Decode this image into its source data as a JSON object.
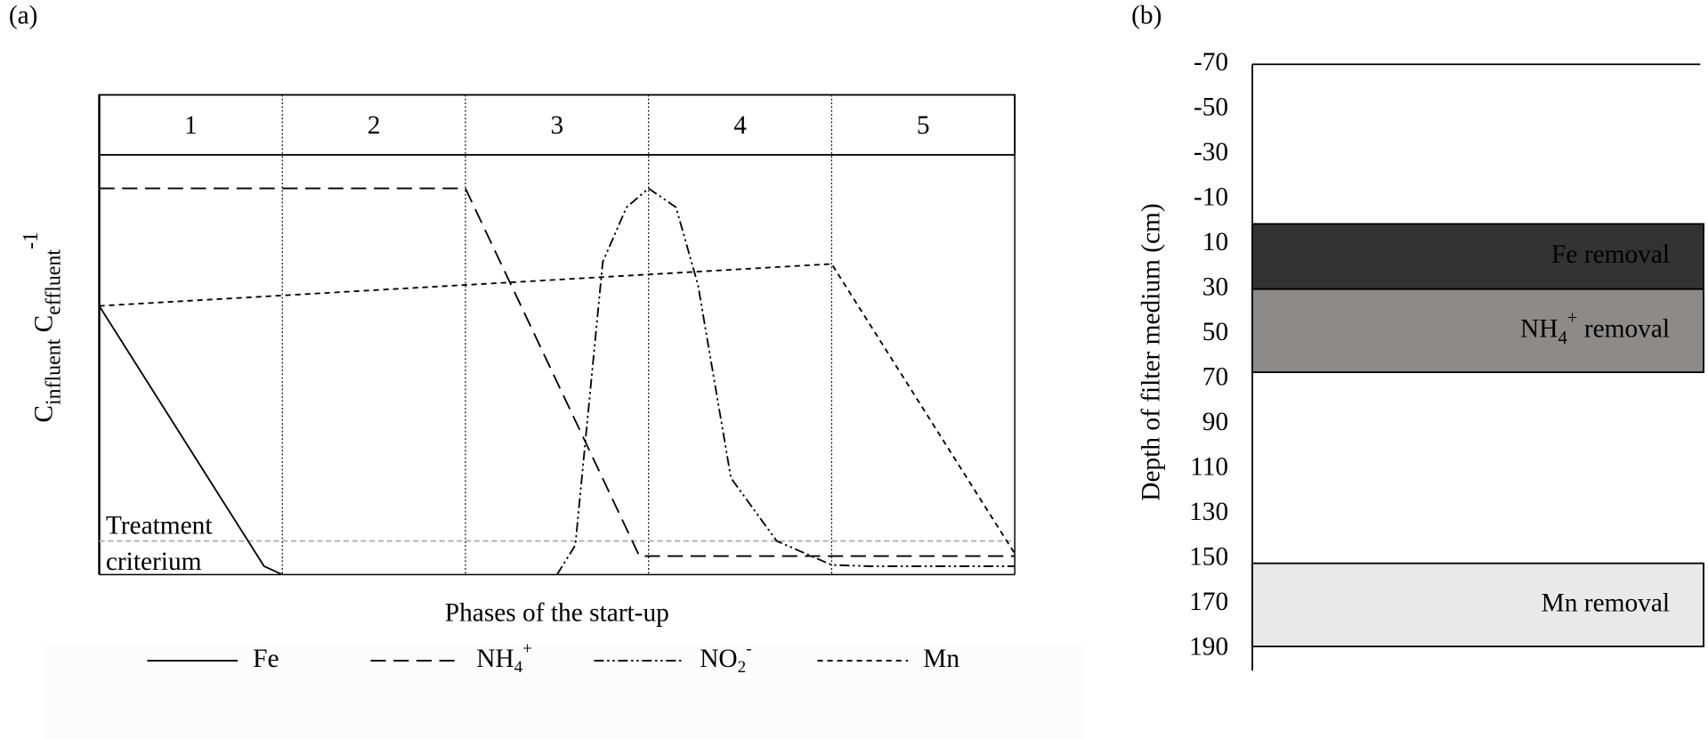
{
  "chart_data": [
    {
      "type": "line",
      "panel_label": "(a)",
      "xlabel": "Phases of the start-up",
      "ylabel": [
        {
          "t": "C"
        },
        {
          "t": "influent",
          "s": "sub"
        },
        {
          "t": " C"
        },
        {
          "t": "effluent",
          "s": "sub"
        },
        {
          "t": "-1",
          "s": "sup"
        }
      ],
      "categories": [
        "1",
        "2",
        "3",
        "4",
        "5"
      ],
      "xlim": [
        0,
        5
      ],
      "ylim": [
        0,
        1
      ],
      "threshold": 0.08,
      "threshold_label": [
        "Treatment",
        "criterium"
      ],
      "threshold_color": "#aaaaaa",
      "series": [
        {
          "name": [
            {
              "t": "Fe"
            }
          ],
          "color": "#000000",
          "dash": "none",
          "x": [
            0,
            0.9,
            1
          ],
          "values": [
            0.64,
            0.02,
            0
          ]
        },
        {
          "name": [
            {
              "t": "NH"
            },
            {
              "t": "4",
              "s": "sub"
            },
            {
              "t": "+",
              "s": "sup"
            }
          ],
          "color": "#000000",
          "dash": "14 7",
          "x": [
            0,
            2,
            2.95,
            5
          ],
          "values": [
            0.92,
            0.92,
            0.044,
            0.044
          ]
        },
        {
          "name": [
            {
              "t": "NO"
            },
            {
              "t": "2",
              "s": "sub"
            },
            {
              "t": "-",
              "s": "sup"
            }
          ],
          "color": "#000000",
          "dash": "9 3 2 3 2 3",
          "x": [
            2.5,
            2.6,
            2.75,
            2.88,
            3,
            3.15,
            3.27,
            3.45,
            3.7,
            4,
            4.2,
            5
          ],
          "values": [
            0,
            0.07,
            0.745,
            0.875,
            0.92,
            0.875,
            0.69,
            0.23,
            0.08,
            0.023,
            0.02,
            0.02
          ]
        },
        {
          "name": [
            {
              "t": "Mn"
            }
          ],
          "color": "#000000",
          "dash": "5 4",
          "x": [
            0,
            4,
            5
          ],
          "values": [
            0.64,
            0.74,
            0.05
          ]
        }
      ]
    },
    {
      "type": "band",
      "panel_label": "(b)",
      "ylabel": "Depth of filter medium (cm)",
      "ylim": [
        -70,
        190
      ],
      "yticks": [
        -70,
        -50,
        -30,
        -10,
        10,
        30,
        50,
        70,
        90,
        110,
        130,
        150,
        170,
        190
      ],
      "bands": [
        {
          "label": [
            {
              "t": "Fe removal"
            }
          ],
          "color": "#333333",
          "text_color": "#ffffff",
          "values": [
            1,
            30
          ]
        },
        {
          "label": [
            {
              "t": "NH"
            },
            {
              "t": "4",
              "s": "sub"
            },
            {
              "t": "+",
              "s": "sup"
            },
            {
              "t": " removal"
            }
          ],
          "color": "#8e8a88",
          "text_color": "#000000",
          "values": [
            30,
            67
          ]
        },
        {
          "label": [
            {
              "t": "Mn removal"
            }
          ],
          "color": "#e9e9e9",
          "text_color": "#000000",
          "values": [
            152,
            189
          ]
        }
      ]
    }
  ]
}
